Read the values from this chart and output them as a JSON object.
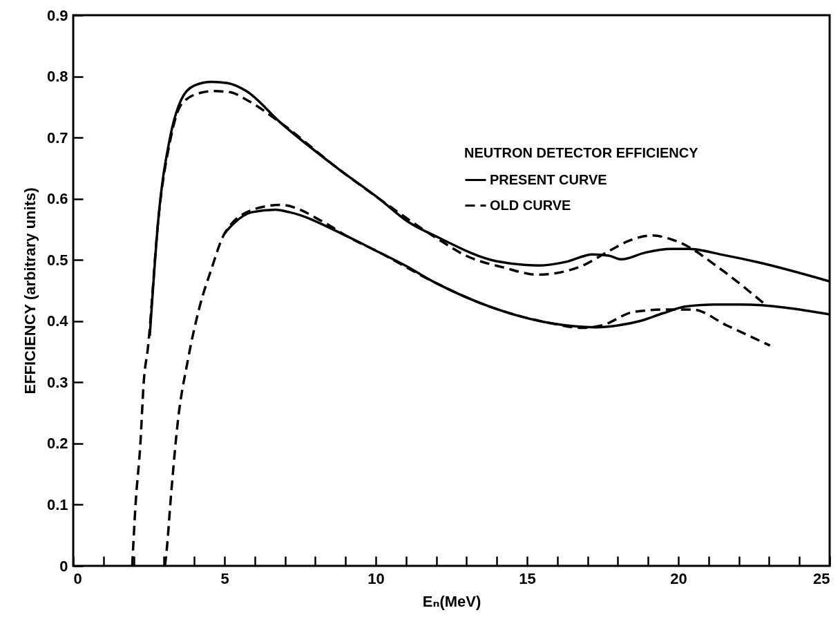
{
  "chart_data": {
    "type": "line",
    "xlabel": "Eₙ(MeV)",
    "ylabel": "EFFICIENCY (arbitrary units)",
    "legend_title": "NEUTRON DETECTOR EFFICIENCY",
    "xlim": [
      0,
      25
    ],
    "ylim": [
      0,
      0.9
    ],
    "xticks": [
      0,
      {
        "value": 1,
        "label": null
      },
      {
        "value": 2,
        "label": null
      },
      {
        "value": 3,
        "label": null
      },
      {
        "value": 4,
        "label": null
      },
      5,
      {
        "value": 6,
        "label": null
      },
      {
        "value": 7,
        "label": null
      },
      {
        "value": 8,
        "label": null
      },
      {
        "value": 9,
        "label": null
      },
      10,
      {
        "value": 11,
        "label": null
      },
      {
        "value": 12,
        "label": null
      },
      {
        "value": 13,
        "label": null
      },
      {
        "value": 14,
        "label": null
      },
      15,
      {
        "value": 16,
        "label": null
      },
      {
        "value": 17,
        "label": null
      },
      {
        "value": 18,
        "label": null
      },
      {
        "value": 19,
        "label": null
      },
      20,
      {
        "value": 21,
        "label": null
      },
      {
        "value": 22,
        "label": null
      },
      {
        "value": 23,
        "label": null
      },
      {
        "value": 24,
        "label": null
      },
      25
    ],
    "yticks": [
      0,
      0.1,
      0.2,
      0.3,
      0.4,
      0.5,
      0.6,
      0.7,
      0.8,
      0.9
    ],
    "grid": false,
    "legend": "top right",
    "marker": "none",
    "series": [
      {
        "name": "PRESENT CURVE",
        "color": "#000000",
        "line_style": "solid",
        "x": [
          2.53,
          2.82,
          3.2,
          3.57,
          4.0,
          4.58,
          5.1,
          5.72,
          6.86,
          8.76,
          10.14,
          11.05,
          12.06,
          13.98,
          15.42,
          16.3,
          17.16,
          17.7,
          18.12,
          18.9,
          19.77,
          20.34,
          21.5,
          22.65,
          25
        ],
        "values": [
          0.376,
          0.57,
          0.7,
          0.762,
          0.785,
          0.791,
          0.789,
          0.776,
          0.724,
          0.649,
          0.599,
          0.563,
          0.537,
          0.498,
          0.491,
          0.497,
          0.509,
          0.507,
          0.501,
          0.512,
          0.518,
          0.518,
          0.508,
          0.496,
          0.465
        ]
      },
      {
        "color": "#000000",
        "line_style": "solid",
        "x": [
          5.0,
          5.27,
          5.9,
          6.68,
          7.15,
          9.04,
          10.09,
          10.93,
          12.0,
          13.92,
          15.85,
          17.29,
          18.0,
          18.72,
          19.5,
          20.25,
          21.2,
          22.07,
          25
        ],
        "values": [
          0.543,
          0.558,
          0.578,
          0.582,
          0.578,
          0.539,
          0.513,
          0.492,
          0.462,
          0.421,
          0.396,
          0.39,
          0.393,
          0.4,
          0.413,
          0.424,
          0.427,
          0.427,
          0.411
        ]
      },
      {
        "name": "OLD CURVE",
        "color": "#000000",
        "line_style": "dashed",
        "x": [
          1.95,
          2.06,
          2.22,
          2.33,
          2.47,
          2.82,
          3.2,
          3.57,
          4.19,
          4.65,
          5.2,
          5.72,
          6.86,
          8.76,
          10.14,
          12.06,
          12.98,
          14.2,
          15.37,
          16.8,
          17.76,
          18.4,
          19.1,
          20.07,
          21.4,
          22.85
        ],
        "values": [
          0,
          0.1,
          0.2,
          0.3,
          0.357,
          0.57,
          0.694,
          0.754,
          0.773,
          0.776,
          0.774,
          0.762,
          0.724,
          0.649,
          0.599,
          0.534,
          0.507,
          0.488,
          0.476,
          0.49,
          0.516,
          0.532,
          0.54,
          0.528,
          0.485,
          0.428
        ]
      },
      {
        "color": "#000000",
        "line_style": "dashed",
        "x": [
          3.03,
          3.07,
          3.24,
          3.46,
          3.78,
          4.17,
          4.56,
          5.0,
          5.93,
          6.84,
          8.34,
          9.04,
          10.09,
          12.0,
          13.92,
          15.85,
          16.8,
          17.47,
          18.52,
          19.59,
          20.46,
          21.6,
          23.03
        ],
        "values": [
          0,
          0.016,
          0.12,
          0.237,
          0.334,
          0.422,
          0.484,
          0.543,
          0.582,
          0.59,
          0.56,
          0.539,
          0.513,
          0.462,
          0.421,
          0.396,
          0.389,
          0.393,
          0.415,
          0.419,
          0.419,
          0.393,
          0.36
        ]
      }
    ]
  }
}
